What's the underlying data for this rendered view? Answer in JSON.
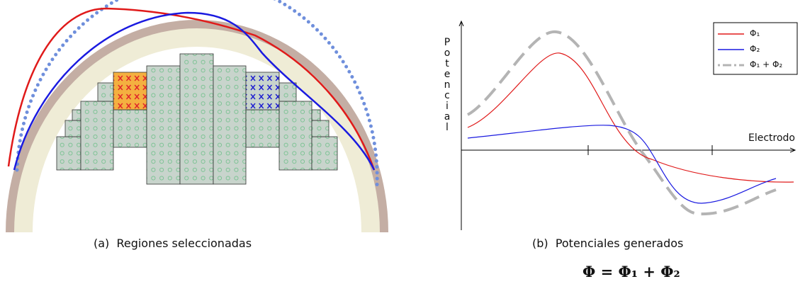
{
  "panel_a": {
    "caption": "(a)  Regiones seleccionadas"
  },
  "panel_b": {
    "caption": "(b)  Potenciales generados",
    "y_axis_label": "Potencial",
    "x_axis_label": "Electrodo",
    "legend": [
      "Φ₁",
      "Φ₂",
      "Φ₁ + Φ₂"
    ]
  },
  "equation": "Φ = Φ₁ + Φ₂"
}
